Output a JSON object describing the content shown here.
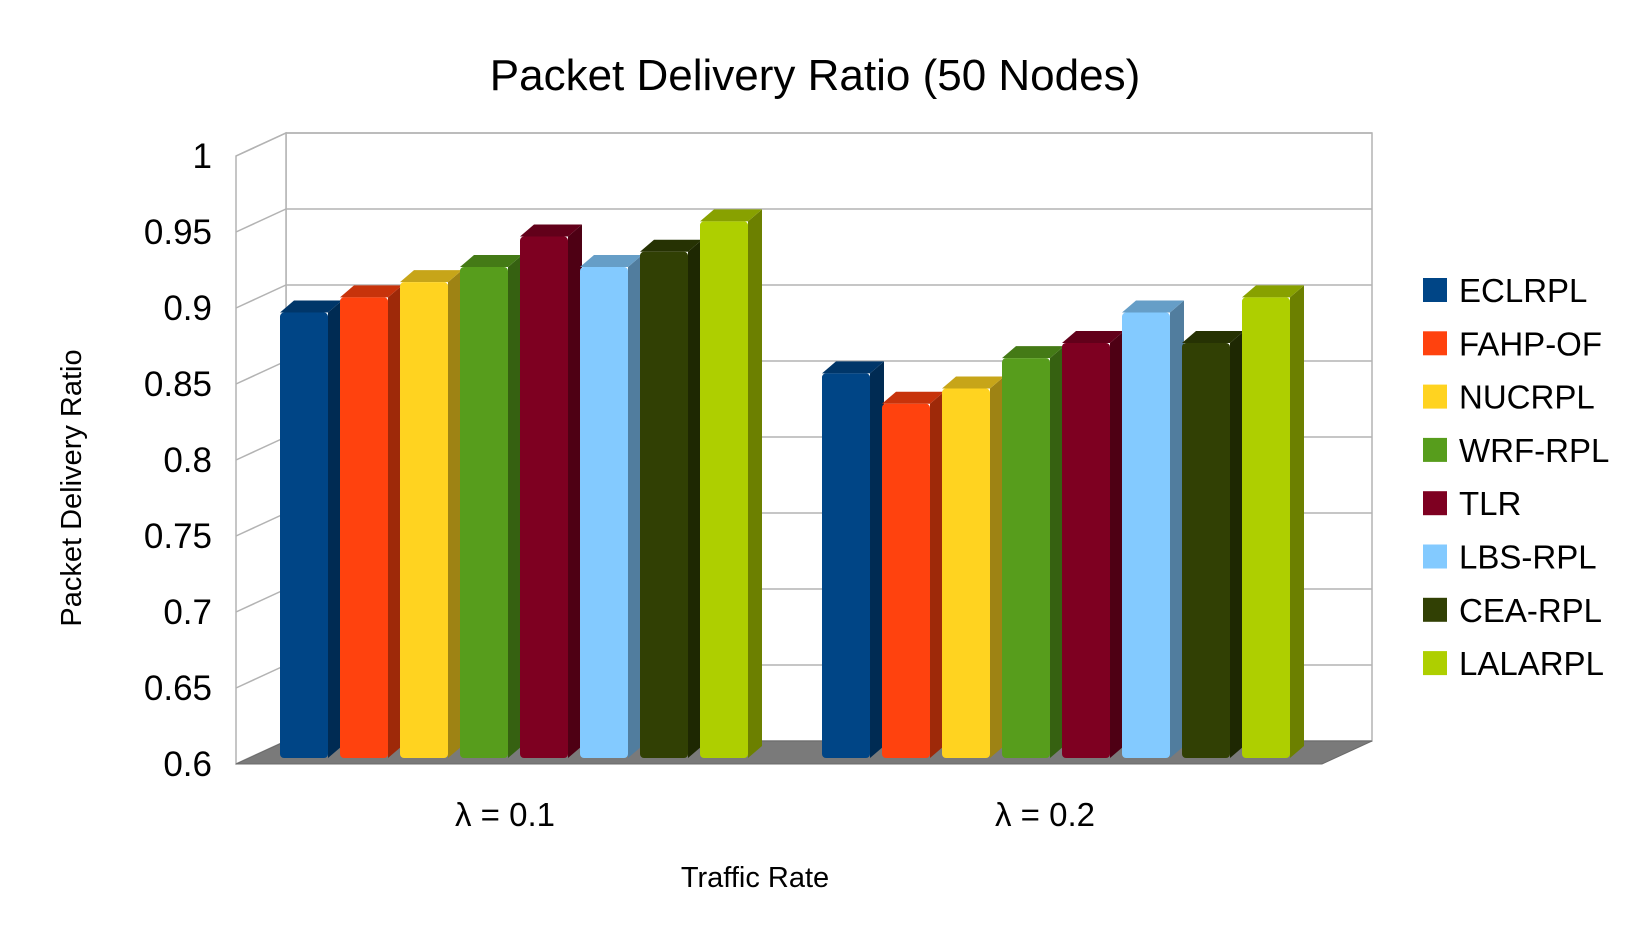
{
  "chart_data": {
    "type": "bar",
    "title": "Packet Delivery Ratio (50 Nodes)",
    "xlabel": "Traffic Rate",
    "ylabel": "Packet Delivery Ratio",
    "categories": [
      "λ = 0.1",
      "λ = 0.2"
    ],
    "ylim": [
      0.6,
      1
    ],
    "yticks": [
      "0.6",
      "0.65",
      "0.7",
      "0.75",
      "0.8",
      "0.85",
      "0.9",
      "0.95",
      "1"
    ],
    "grid": true,
    "legend_position": "right",
    "series": [
      {
        "name": "ECLRPL",
        "color": "#004586",
        "values": [
          0.897,
          0.857
        ]
      },
      {
        "name": "FAHP-OF",
        "color": "#ff420e",
        "values": [
          0.907,
          0.837
        ]
      },
      {
        "name": "NUCRPL",
        "color": "#ffd320",
        "values": [
          0.917,
          0.847
        ]
      },
      {
        "name": "WRF-RPL",
        "color": "#579d1c",
        "values": [
          0.927,
          0.867
        ]
      },
      {
        "name": "TLR",
        "color": "#7e0021",
        "values": [
          0.947,
          0.877
        ]
      },
      {
        "name": "LBS-RPL",
        "color": "#83caff",
        "values": [
          0.927,
          0.897
        ]
      },
      {
        "name": "CEA-RPL",
        "color": "#314004",
        "values": [
          0.937,
          0.877
        ]
      },
      {
        "name": "LALARPL",
        "color": "#aecf00",
        "values": [
          0.957,
          0.907
        ]
      }
    ]
  }
}
